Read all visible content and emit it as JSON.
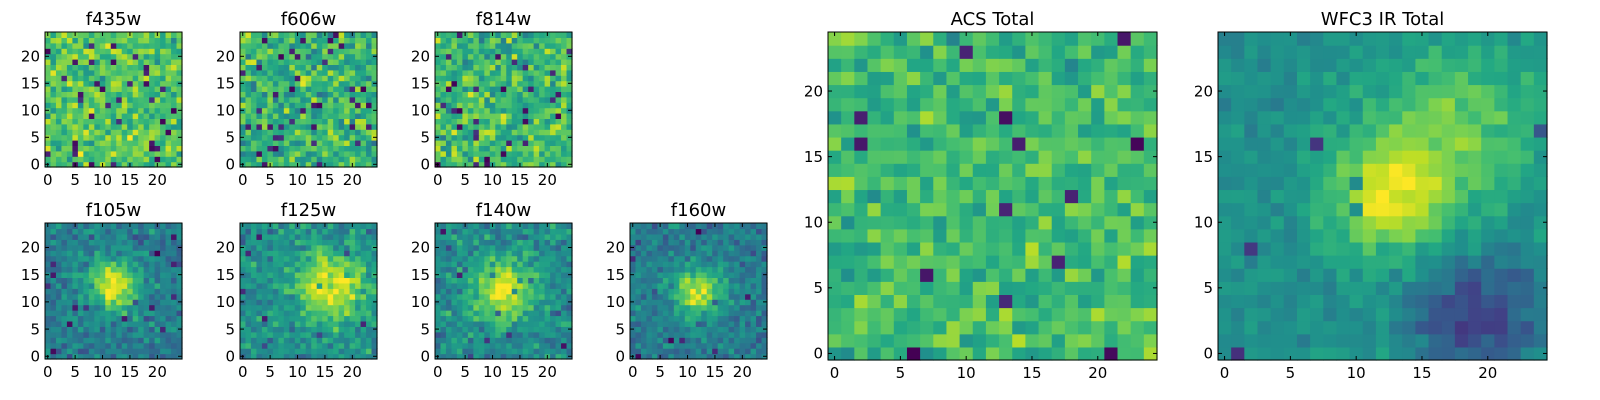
{
  "chart_data": {
    "type": "heatmap",
    "grid_size": 25,
    "colormap": "viridis",
    "panels": [
      {
        "id": "f435w",
        "title": "f435w",
        "xticks": [
          "0",
          "5",
          "10",
          "15",
          "20"
        ],
        "yticks": [
          "0",
          "5",
          "10",
          "15",
          "20"
        ],
        "xlim": [
          0,
          24
        ],
        "ylim": [
          0,
          24
        ],
        "mode": "noise",
        "seed": 11,
        "mean": 0.72,
        "spread": 0.22,
        "dark_rate": 0.05
      },
      {
        "id": "f606w",
        "title": "f606w",
        "xticks": [
          "0",
          "5",
          "10",
          "15",
          "20"
        ],
        "yticks": [
          "0",
          "5",
          "10",
          "15",
          "20"
        ],
        "xlim": [
          0,
          24
        ],
        "ylim": [
          0,
          24
        ],
        "mode": "noise",
        "seed": 23,
        "mean": 0.66,
        "spread": 0.25,
        "dark_rate": 0.06
      },
      {
        "id": "f814w",
        "title": "f814w",
        "xticks": [
          "0",
          "5",
          "10",
          "15",
          "20"
        ],
        "yticks": [
          "0",
          "5",
          "10",
          "15",
          "20"
        ],
        "xlim": [
          0,
          24
        ],
        "ylim": [
          0,
          24
        ],
        "mode": "noise",
        "seed": 37,
        "mean": 0.68,
        "spread": 0.24,
        "dark_rate": 0.05
      },
      {
        "id": "f105w",
        "title": "f105w",
        "xticks": [
          "0",
          "5",
          "10",
          "15",
          "20"
        ],
        "yticks": [
          "0",
          "5",
          "10",
          "15",
          "20"
        ],
        "xlim": [
          0,
          24
        ],
        "ylim": [
          0,
          24
        ],
        "mode": "source",
        "seed": 41,
        "center": [
          12,
          13
        ],
        "sigma": 3.2,
        "peak": 0.55,
        "base": 0.42,
        "noise": 0.18
      },
      {
        "id": "f125w",
        "title": "f125w",
        "xticks": [
          "0",
          "5",
          "10",
          "15",
          "20"
        ],
        "yticks": [
          "0",
          "5",
          "10",
          "15",
          "20"
        ],
        "xlim": [
          0,
          24
        ],
        "ylim": [
          0,
          24
        ],
        "mode": "source",
        "seed": 53,
        "center": [
          16,
          13
        ],
        "sigma": 4.5,
        "peak": 0.45,
        "base": 0.5,
        "noise": 0.2
      },
      {
        "id": "f140w",
        "title": "f140w",
        "xticks": [
          "0",
          "5",
          "10",
          "15",
          "20"
        ],
        "yticks": [
          "0",
          "5",
          "10",
          "15",
          "20"
        ],
        "xlim": [
          0,
          24
        ],
        "ylim": [
          0,
          24
        ],
        "mode": "source",
        "seed": 67,
        "center": [
          12,
          12
        ],
        "sigma": 4.0,
        "peak": 0.5,
        "base": 0.48,
        "noise": 0.2
      },
      {
        "id": "f160w",
        "title": "f160w",
        "xticks": [
          "0",
          "5",
          "10",
          "15",
          "20"
        ],
        "yticks": [
          "0",
          "5",
          "10",
          "15",
          "20"
        ],
        "xlim": [
          0,
          24
        ],
        "ylim": [
          0,
          24
        ],
        "mode": "source",
        "seed": 79,
        "center": [
          12,
          12
        ],
        "sigma": 3.0,
        "peak": 0.5,
        "base": 0.42,
        "noise": 0.17
      },
      {
        "id": "acs-total",
        "title": "ACS Total",
        "xticks": [
          "0",
          "5",
          "10",
          "15",
          "20"
        ],
        "yticks": [
          "0",
          "5",
          "10",
          "15",
          "20"
        ],
        "xlim": [
          0,
          24
        ],
        "ylim": [
          0,
          24
        ],
        "mode": "noise",
        "seed": 97,
        "mean": 0.68,
        "spread": 0.18,
        "dark_rate": 0.03
      },
      {
        "id": "wfc3-ir-total",
        "title": "WFC3 IR Total",
        "xticks": [
          "0",
          "5",
          "10",
          "15",
          "20"
        ],
        "yticks": [
          "0",
          "5",
          "10",
          "15",
          "20"
        ],
        "xlim": [
          0,
          24
        ],
        "ylim": [
          0,
          24
        ],
        "mode": "source",
        "seed": 103,
        "center": [
          12.5,
          12
        ],
        "sigma": 3.3,
        "peak": 0.42,
        "base": 0.5,
        "noise": 0.1,
        "ridge": [
          18,
          17
        ]
      }
    ]
  }
}
